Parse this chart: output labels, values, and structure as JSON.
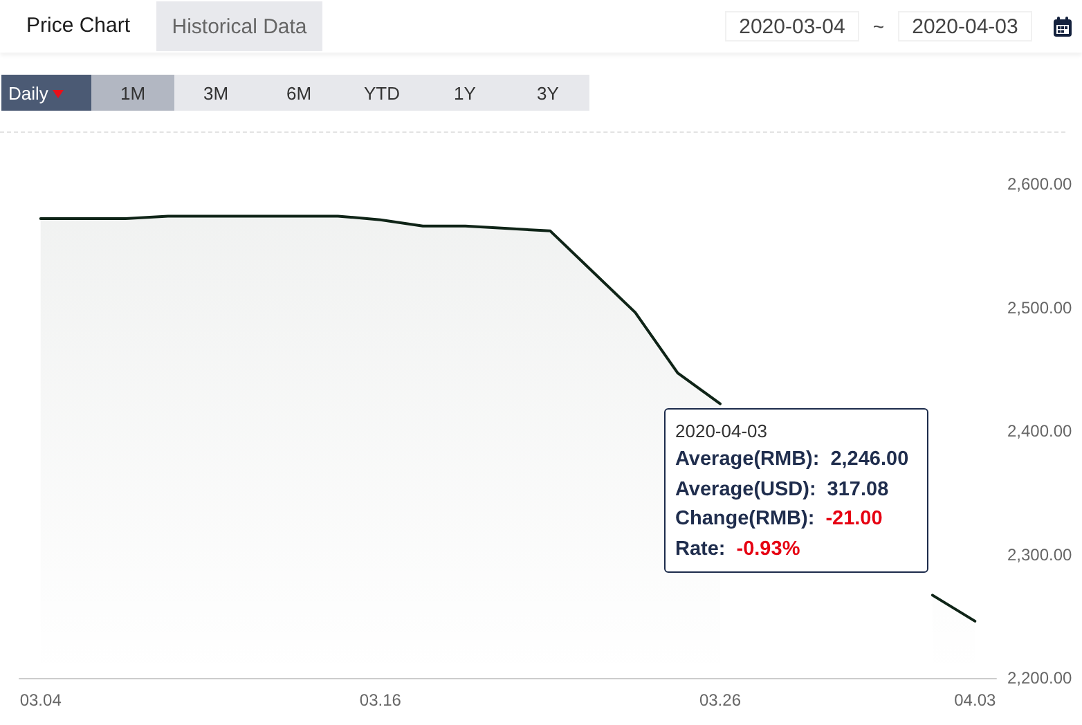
{
  "chart_data": {
    "type": "area",
    "categories": [
      "03.04",
      null,
      null,
      null,
      null,
      null,
      null,
      null,
      "03.16",
      null,
      null,
      null,
      null,
      null,
      null,
      null,
      "03.26",
      null,
      null,
      null,
      null,
      null,
      "04.03"
    ],
    "values": [
      2572,
      2572,
      2572,
      2574,
      2574,
      2574,
      2574,
      2574,
      2571,
      2566,
      2566,
      2564,
      2562,
      2529,
      2496,
      2447,
      2422,
      null,
      null,
      null,
      null,
      2267,
      2246
    ],
    "color": "#0f2417",
    "ylim": [
      2200,
      2600
    ],
    "yticks": [
      {
        "value": 2200,
        "label": "2,200.00"
      },
      {
        "value": 2300,
        "label": "2,300.00"
      },
      {
        "value": 2400,
        "label": "2,400.00"
      },
      {
        "value": 2500,
        "label": "2,500.00"
      },
      {
        "value": 2600,
        "label": "2,600.00"
      }
    ],
    "grid": false,
    "marker": "none",
    "annotations": [
      "Price Chart",
      "Historical Data",
      "2020-03-04",
      "~",
      "2020-04-03",
      "Daily",
      "1M",
      "3M",
      "6M",
      "YTD",
      "1Y",
      "3Y",
      "2020-04-03",
      "Average(RMB):",
      "2,246.00",
      "Average(USD):",
      "317.08",
      "Change(RMB):",
      "-21.00",
      "Rate:",
      "-0.93%"
    ]
  }
}
